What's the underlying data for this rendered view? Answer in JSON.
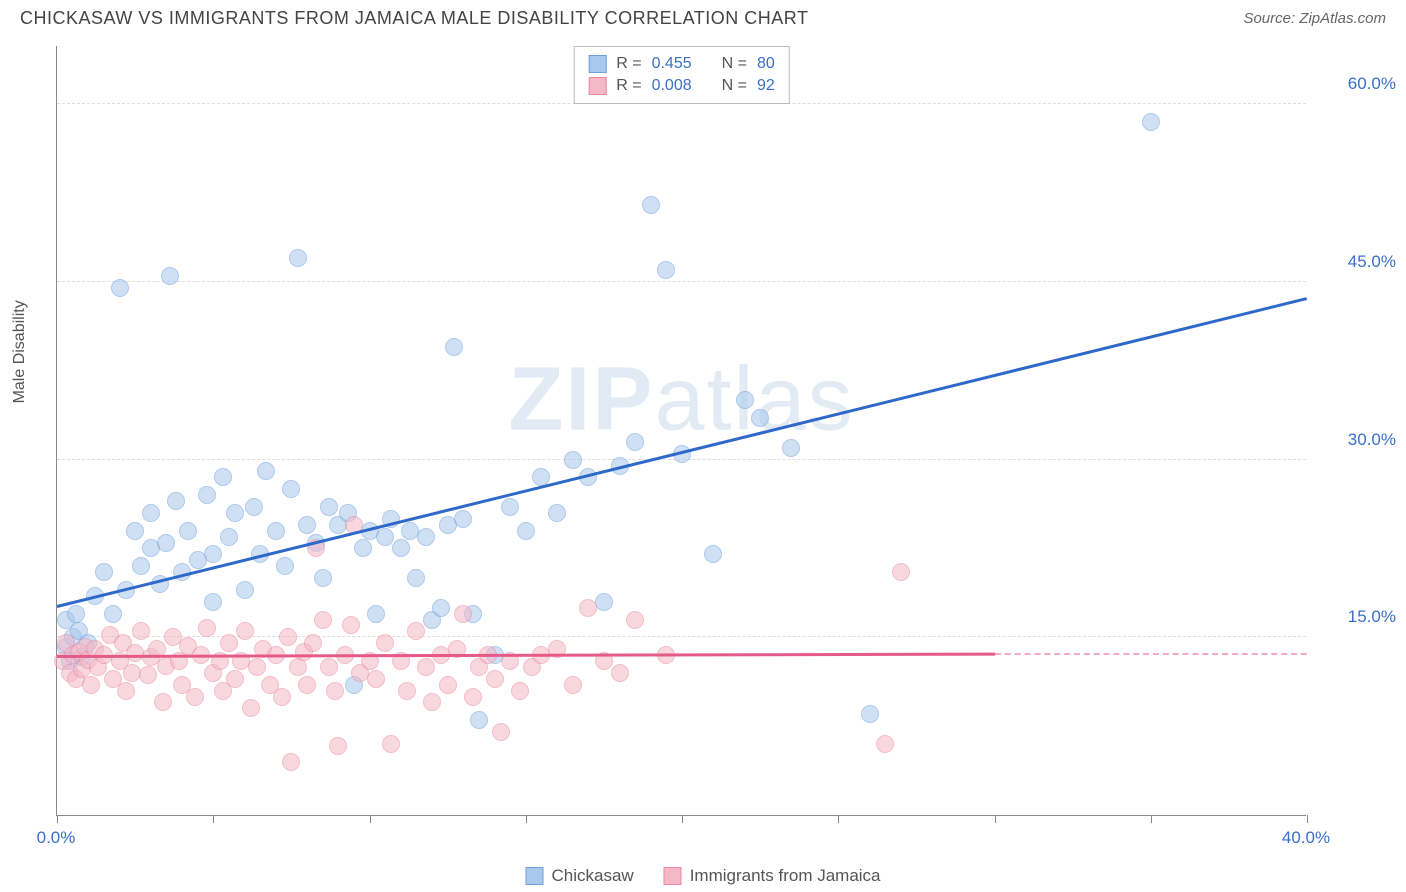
{
  "title": "CHICKASAW VS IMMIGRANTS FROM JAMAICA MALE DISABILITY CORRELATION CHART",
  "source": "Source: ZipAtlas.com",
  "watermark_bold": "ZIP",
  "watermark_rest": "atlas",
  "ylabel": "Male Disability",
  "chart": {
    "type": "scatter",
    "xlim": [
      0,
      40
    ],
    "ylim": [
      0,
      65
    ],
    "background_color": "#ffffff",
    "grid_color": "#dddddd",
    "axis_color": "#888888",
    "marker_radius": 9,
    "marker_opacity": 0.55,
    "tick_label_color": "#3b6fc9",
    "tick_label_fontsize": 17,
    "xticks": [
      0,
      5,
      10,
      15,
      20,
      25,
      30,
      35,
      40
    ],
    "xtick_labels": {
      "0": "0.0%",
      "40": "40.0%"
    },
    "yticks": [
      15,
      30,
      45,
      60
    ],
    "ytick_labels": {
      "15": "15.0%",
      "30": "30.0%",
      "45": "45.0%",
      "60": "60.0%"
    }
  },
  "series": [
    {
      "name": "Chickasaw",
      "fill": "#a9c8ee",
      "stroke": "#6f9fd8",
      "trend_color": "#2e68c9",
      "R": "0.455",
      "N": "80",
      "trend": {
        "x1": 0,
        "y1": 17.5,
        "x2": 40,
        "y2": 43.5
      },
      "points": [
        [
          0.3,
          14.2
        ],
        [
          0.3,
          16.5
        ],
        [
          0.4,
          13.0
        ],
        [
          0.5,
          15.0
        ],
        [
          0.6,
          17.0
        ],
        [
          0.7,
          15.5
        ],
        [
          0.8,
          13.3
        ],
        [
          1.0,
          14.5
        ],
        [
          1.2,
          18.5
        ],
        [
          1.5,
          20.5
        ],
        [
          1.8,
          17.0
        ],
        [
          2.0,
          44.5
        ],
        [
          2.2,
          19.0
        ],
        [
          2.5,
          24.0
        ],
        [
          2.7,
          21.0
        ],
        [
          3.0,
          22.5
        ],
        [
          3.0,
          25.5
        ],
        [
          3.3,
          19.5
        ],
        [
          3.5,
          23.0
        ],
        [
          3.6,
          45.5
        ],
        [
          3.8,
          26.5
        ],
        [
          4.0,
          20.5
        ],
        [
          4.2,
          24.0
        ],
        [
          4.5,
          21.5
        ],
        [
          4.8,
          27.0
        ],
        [
          5.0,
          22.0
        ],
        [
          5.0,
          18.0
        ],
        [
          5.3,
          28.5
        ],
        [
          5.5,
          23.5
        ],
        [
          5.7,
          25.5
        ],
        [
          6.0,
          19.0
        ],
        [
          6.3,
          26.0
        ],
        [
          6.5,
          22.0
        ],
        [
          6.7,
          29.0
        ],
        [
          7.0,
          24.0
        ],
        [
          7.3,
          21.0
        ],
        [
          7.5,
          27.5
        ],
        [
          7.7,
          47.0
        ],
        [
          8.0,
          24.5
        ],
        [
          8.3,
          23.0
        ],
        [
          8.5,
          20.0
        ],
        [
          8.7,
          26.0
        ],
        [
          9.0,
          24.5
        ],
        [
          9.3,
          25.5
        ],
        [
          9.5,
          11.0
        ],
        [
          9.8,
          22.5
        ],
        [
          10.0,
          24.0
        ],
        [
          10.2,
          17.0
        ],
        [
          10.5,
          23.5
        ],
        [
          10.7,
          25.0
        ],
        [
          11.0,
          22.5
        ],
        [
          11.3,
          24.0
        ],
        [
          11.5,
          20.0
        ],
        [
          11.8,
          23.5
        ],
        [
          12.0,
          16.5
        ],
        [
          12.3,
          17.5
        ],
        [
          12.5,
          24.5
        ],
        [
          12.7,
          39.5
        ],
        [
          13.0,
          25.0
        ],
        [
          13.3,
          17.0
        ],
        [
          13.5,
          8.0
        ],
        [
          14.0,
          13.5
        ],
        [
          14.5,
          26.0
        ],
        [
          15.0,
          24.0
        ],
        [
          15.5,
          28.5
        ],
        [
          16.0,
          25.5
        ],
        [
          16.5,
          30.0
        ],
        [
          17.0,
          28.5
        ],
        [
          17.5,
          18.0
        ],
        [
          18.0,
          29.5
        ],
        [
          18.5,
          31.5
        ],
        [
          19.0,
          51.5
        ],
        [
          19.5,
          46.0
        ],
        [
          20.0,
          30.5
        ],
        [
          21.0,
          22.0
        ],
        [
          22.0,
          35.0
        ],
        [
          22.5,
          33.5
        ],
        [
          23.5,
          31.0
        ],
        [
          26.0,
          8.5
        ],
        [
          35.0,
          58.5
        ]
      ]
    },
    {
      "name": "Immigrants from Jamaica",
      "fill": "#f4b8c6",
      "stroke": "#e88aa2",
      "trend_color": "#e65a88",
      "R": "0.008",
      "N": "92",
      "trend": {
        "x1": 0,
        "y1": 13.3,
        "x2": 30,
        "y2": 13.5
      },
      "trend_dash": {
        "x1": 30,
        "y1": 13.5,
        "x2": 40,
        "y2": 13.5
      },
      "points": [
        [
          0.2,
          13.0
        ],
        [
          0.3,
          14.5
        ],
        [
          0.4,
          12.0
        ],
        [
          0.5,
          13.5
        ],
        [
          0.6,
          11.5
        ],
        [
          0.7,
          13.8
        ],
        [
          0.8,
          12.3
        ],
        [
          0.9,
          14.2
        ],
        [
          1.0,
          13.1
        ],
        [
          1.1,
          11.0
        ],
        [
          1.2,
          14.0
        ],
        [
          1.3,
          12.5
        ],
        [
          1.5,
          13.5
        ],
        [
          1.7,
          15.2
        ],
        [
          1.8,
          11.5
        ],
        [
          2.0,
          13.0
        ],
        [
          2.1,
          14.5
        ],
        [
          2.2,
          10.5
        ],
        [
          2.4,
          12.0
        ],
        [
          2.5,
          13.7
        ],
        [
          2.7,
          15.5
        ],
        [
          2.9,
          11.8
        ],
        [
          3.0,
          13.3
        ],
        [
          3.2,
          14.0
        ],
        [
          3.4,
          9.5
        ],
        [
          3.5,
          12.6
        ],
        [
          3.7,
          15.0
        ],
        [
          3.9,
          13.0
        ],
        [
          4.0,
          11.0
        ],
        [
          4.2,
          14.3
        ],
        [
          4.4,
          10.0
        ],
        [
          4.6,
          13.5
        ],
        [
          4.8,
          15.8
        ],
        [
          5.0,
          12.0
        ],
        [
          5.2,
          13.0
        ],
        [
          5.3,
          10.5
        ],
        [
          5.5,
          14.5
        ],
        [
          5.7,
          11.5
        ],
        [
          5.9,
          13.0
        ],
        [
          6.0,
          15.5
        ],
        [
          6.2,
          9.0
        ],
        [
          6.4,
          12.5
        ],
        [
          6.6,
          14.0
        ],
        [
          6.8,
          11.0
        ],
        [
          7.0,
          13.5
        ],
        [
          7.2,
          10.0
        ],
        [
          7.4,
          15.0
        ],
        [
          7.5,
          4.5
        ],
        [
          7.7,
          12.5
        ],
        [
          7.9,
          13.8
        ],
        [
          8.0,
          11.0
        ],
        [
          8.2,
          14.5
        ],
        [
          8.3,
          22.5
        ],
        [
          8.5,
          16.5
        ],
        [
          8.7,
          12.5
        ],
        [
          8.9,
          10.5
        ],
        [
          9.0,
          5.8
        ],
        [
          9.2,
          13.5
        ],
        [
          9.4,
          16.0
        ],
        [
          9.5,
          24.5
        ],
        [
          9.7,
          12.0
        ],
        [
          10.0,
          13.0
        ],
        [
          10.2,
          11.5
        ],
        [
          10.5,
          14.5
        ],
        [
          10.7,
          6.0
        ],
        [
          11.0,
          13.0
        ],
        [
          11.2,
          10.5
        ],
        [
          11.5,
          15.5
        ],
        [
          11.8,
          12.5
        ],
        [
          12.0,
          9.5
        ],
        [
          12.3,
          13.5
        ],
        [
          12.5,
          11.0
        ],
        [
          12.8,
          14.0
        ],
        [
          13.0,
          17.0
        ],
        [
          13.3,
          10.0
        ],
        [
          13.5,
          12.5
        ],
        [
          13.8,
          13.5
        ],
        [
          14.0,
          11.5
        ],
        [
          14.2,
          7.0
        ],
        [
          14.5,
          13.0
        ],
        [
          14.8,
          10.5
        ],
        [
          15.2,
          12.5
        ],
        [
          15.5,
          13.5
        ],
        [
          16.0,
          14.0
        ],
        [
          16.5,
          11.0
        ],
        [
          17.0,
          17.5
        ],
        [
          17.5,
          13.0
        ],
        [
          18.0,
          12.0
        ],
        [
          18.5,
          16.5
        ],
        [
          19.5,
          13.5
        ],
        [
          26.5,
          6.0
        ],
        [
          27.0,
          20.5
        ]
      ]
    }
  ],
  "legend_labels": {
    "R": "R =",
    "N": "N ="
  }
}
